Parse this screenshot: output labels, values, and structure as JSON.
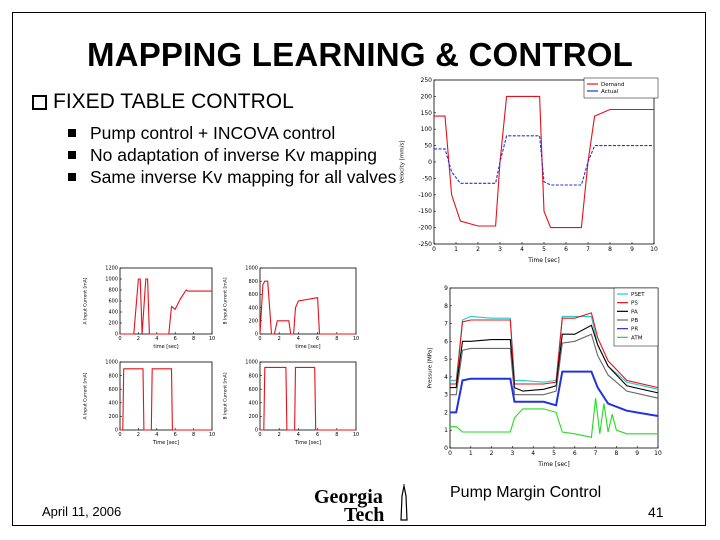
{
  "slide": {
    "title": "MAPPING LEARNING & CONTROL",
    "heading": "FIXED TABLE CONTROL",
    "bullets": [
      "Pump control + INCOVA control",
      "No adaptation of inverse Kv mapping",
      "Same inverse Kv mapping for all valves"
    ],
    "date": "April 11, 2006",
    "page_number": "41",
    "caption": "Pump Margin Control",
    "logo_line1": "Georgia",
    "logo_line2": "Tech"
  },
  "icons": {
    "heading_bullet": "checkbox-bullet-icon",
    "logo": "georgia-tech-logo"
  },
  "colors": {
    "red": "#e8101a",
    "blue": "#2233dd",
    "cyan": "#22cccc",
    "green": "#22dd22",
    "black": "#000000",
    "gray": "#666666"
  },
  "chart_data": [
    {
      "type": "line",
      "xlabel": "Time [sec]",
      "ylabel": "Velocity [mm/s]",
      "xlim": [
        0,
        10
      ],
      "ylim": [
        -250,
        250
      ],
      "xticks": [
        0,
        1,
        2,
        3,
        4,
        5,
        6,
        7,
        8,
        9,
        10
      ],
      "yticks": [
        250,
        200,
        150,
        100,
        50,
        0,
        -50,
        -100,
        -150,
        -200,
        -250
      ],
      "legend": [
        "Demand",
        "Actual"
      ],
      "series": [
        {
          "name": "Demand",
          "color": "red",
          "x": [
            0,
            0.5,
            0.8,
            1.2,
            2,
            2.8,
            3.0,
            3.3,
            4,
            4.8,
            5.0,
            5.3,
            6,
            6.7,
            7.0,
            7.3,
            8,
            9,
            10
          ],
          "y": [
            140,
            140,
            -100,
            -180,
            -195,
            -195,
            0,
            200,
            200,
            200,
            -150,
            -200,
            -200,
            -200,
            0,
            140,
            160,
            160,
            160
          ]
        },
        {
          "name": "Actual",
          "color": "blue",
          "x": [
            0,
            0.5,
            0.8,
            1.2,
            2,
            2.8,
            3.0,
            3.3,
            4,
            4.8,
            5.0,
            5.3,
            6,
            6.7,
            7.0,
            7.3,
            8,
            9,
            10
          ],
          "y": [
            40,
            40,
            -30,
            -65,
            -65,
            -65,
            0,
            80,
            80,
            80,
            -60,
            -70,
            -70,
            -70,
            0,
            50,
            50,
            50,
            50
          ]
        }
      ]
    },
    {
      "type": "line",
      "xlabel": "time [sec]",
      "ylabel": "A Input Current [mA]",
      "xlim": [
        0,
        10
      ],
      "ylim": [
        0,
        1200
      ],
      "xticks": [
        0,
        2,
        4,
        6,
        8,
        10
      ],
      "yticks": [
        0,
        200,
        400,
        600,
        800,
        1000,
        1200
      ],
      "series": [
        {
          "color": "red",
          "x": [
            0,
            1.5,
            2.0,
            2.2,
            2.4,
            2.8,
            3.0,
            3.2,
            5.3,
            5.6,
            6.0,
            6.6,
            7.2,
            7.4,
            10
          ],
          "y": [
            0,
            0,
            1000,
            1000,
            0,
            1000,
            1000,
            0,
            0,
            500,
            450,
            650,
            800,
            780,
            780
          ]
        }
      ]
    },
    {
      "type": "line",
      "xlabel": "time [sec]",
      "ylabel": "B Input Current [mA]",
      "xlim": [
        0,
        10
      ],
      "ylim": [
        0,
        1000
      ],
      "xticks": [
        0,
        2,
        4,
        6,
        8,
        10
      ],
      "yticks": [
        0,
        200,
        400,
        600,
        800,
        1000
      ],
      "series": [
        {
          "color": "red",
          "x": [
            0,
            0.3,
            0.5,
            0.8,
            1.2,
            1.5,
            1.8,
            3.0,
            3.2,
            3.5,
            3.7,
            4.0,
            6.0,
            6.2,
            10
          ],
          "y": [
            0,
            750,
            800,
            800,
            0,
            0,
            200,
            200,
            0,
            0,
            400,
            500,
            550,
            0,
            0
          ]
        }
      ]
    },
    {
      "type": "line",
      "xlabel": "Time [sec]",
      "ylabel": "A Input Current [mA]",
      "xlim": [
        0,
        10
      ],
      "ylim": [
        0,
        1000
      ],
      "xticks": [
        0,
        2,
        4,
        6,
        8,
        10
      ],
      "yticks": [
        0,
        200,
        400,
        600,
        800,
        1000
      ],
      "series": [
        {
          "color": "red",
          "x": [
            0,
            0.3,
            0.4,
            2.5,
            2.6,
            3.4,
            3.5,
            5.6,
            5.7,
            10
          ],
          "y": [
            0,
            0,
            900,
            900,
            0,
            0,
            900,
            900,
            0,
            0
          ]
        }
      ]
    },
    {
      "type": "line",
      "xlabel": "Time [sec]",
      "ylabel": "B Input Current [mA]",
      "xlim": [
        0,
        10
      ],
      "ylim": [
        0,
        1000
      ],
      "xticks": [
        0,
        2,
        4,
        6,
        8,
        10
      ],
      "yticks": [
        0,
        200,
        400,
        600,
        800,
        1000
      ],
      "series": [
        {
          "color": "red",
          "x": [
            0,
            0.4,
            0.5,
            2.7,
            2.8,
            3.6,
            3.7,
            5.7,
            5.8,
            10
          ],
          "y": [
            0,
            0,
            920,
            920,
            0,
            0,
            920,
            920,
            0,
            0
          ]
        }
      ]
    },
    {
      "type": "line",
      "xlabel": "Time [sec]",
      "ylabel": "Pressure [MPa]",
      "xlim": [
        0,
        10
      ],
      "ylim": [
        0,
        9
      ],
      "xticks": [
        0,
        1,
        2,
        3,
        4,
        5,
        6,
        7,
        8,
        9,
        10
      ],
      "yticks": [
        0,
        1,
        2,
        3,
        4,
        5,
        6,
        7,
        8,
        9
      ],
      "legend": [
        "PSET",
        "PS",
        "PA",
        "PB",
        "PR",
        "ATM"
      ],
      "series": [
        {
          "name": "PSET",
          "color": "cyan",
          "x": [
            0,
            0.3,
            0.6,
            1,
            2,
            2.9,
            3.1,
            3.5,
            4.5,
            5.1,
            5.4,
            6,
            6.8,
            7.1,
            7.6,
            8.5,
            10
          ],
          "y": [
            3.8,
            3.8,
            7.2,
            7.4,
            7.3,
            7.3,
            3.8,
            3.8,
            3.7,
            3.8,
            7.4,
            7.4,
            7.4,
            5.8,
            4.6,
            3.7,
            3.3
          ]
        },
        {
          "name": "PS",
          "color": "red",
          "x": [
            0,
            0.3,
            0.6,
            1,
            2,
            2.9,
            3.1,
            3.5,
            4.5,
            5.1,
            5.4,
            6,
            6.8,
            7.1,
            7.6,
            8.5,
            10
          ],
          "y": [
            3.6,
            3.6,
            7.1,
            7.2,
            7.2,
            7.2,
            3.6,
            3.6,
            3.6,
            3.7,
            7.3,
            7.3,
            7.6,
            6.2,
            4.9,
            3.8,
            3.4
          ]
        },
        {
          "name": "PA",
          "color": "black",
          "x": [
            0,
            0.3,
            0.6,
            1,
            2,
            2.9,
            3.1,
            3.5,
            4.5,
            5.1,
            5.4,
            6,
            6.8,
            7.1,
            7.6,
            8.5,
            10
          ],
          "y": [
            3.4,
            3.4,
            6.0,
            6.0,
            6.1,
            6.1,
            3.4,
            3.2,
            3.3,
            3.5,
            6.4,
            6.4,
            6.9,
            5.8,
            4.6,
            3.5,
            3.1
          ]
        },
        {
          "name": "PB",
          "color": "gray",
          "x": [
            0,
            0.3,
            0.6,
            1,
            2,
            2.9,
            3.1,
            3.5,
            4.5,
            5.1,
            5.4,
            6,
            6.8,
            7.1,
            7.6,
            8.5,
            10
          ],
          "y": [
            3.0,
            3.0,
            5.5,
            5.6,
            5.6,
            5.6,
            3.0,
            3.0,
            3.0,
            3.2,
            5.9,
            6.0,
            6.4,
            5.2,
            4.1,
            3.2,
            2.8
          ]
        },
        {
          "name": "PR",
          "color": "blue",
          "x": [
            0,
            0.3,
            0.6,
            1,
            2,
            2.9,
            3.1,
            3.5,
            4.5,
            5.1,
            5.4,
            6,
            6.8,
            7.1,
            7.6,
            8.5,
            10
          ],
          "y": [
            2.0,
            2.0,
            3.8,
            3.9,
            3.9,
            3.9,
            2.6,
            2.6,
            2.6,
            2.4,
            4.3,
            4.3,
            4.3,
            3.4,
            2.5,
            2.1,
            1.8
          ]
        },
        {
          "name": "ATM",
          "color": "green",
          "x": [
            0,
            0.3,
            0.6,
            1,
            2,
            2.9,
            3.1,
            3.5,
            4.5,
            5.1,
            5.4,
            6,
            6.8,
            7.0,
            7.2,
            7.4,
            7.6,
            7.8,
            8.0,
            8.5,
            10
          ],
          "y": [
            1.2,
            1.2,
            0.9,
            0.9,
            0.9,
            0.9,
            1.7,
            2.2,
            2.2,
            2.0,
            0.9,
            0.8,
            0.6,
            2.8,
            0.8,
            2.5,
            0.9,
            1.9,
            1.0,
            0.8,
            0.8
          ]
        }
      ]
    }
  ]
}
